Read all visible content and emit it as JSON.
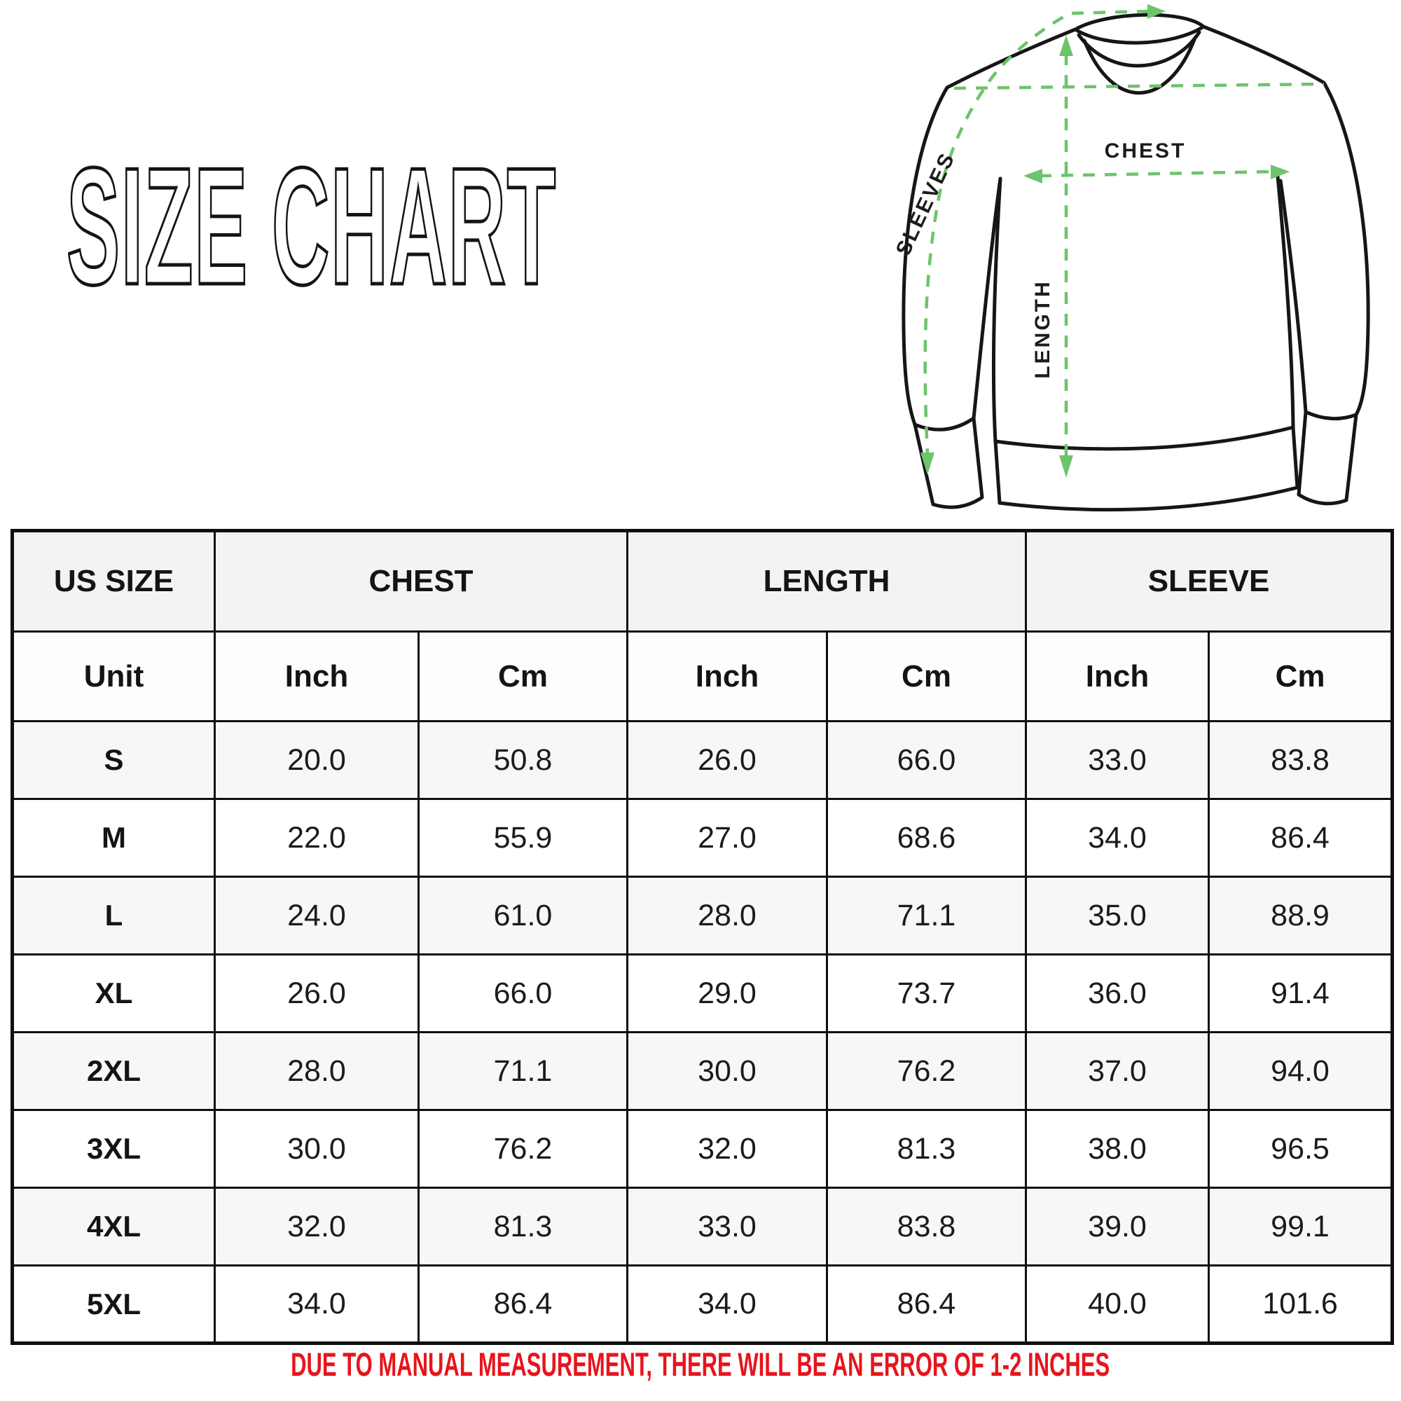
{
  "title": "SIZE CHART",
  "diagram": {
    "labels": {
      "sleeves": "SLEEVES",
      "chest": "CHEST",
      "length": "LENGTH"
    },
    "arrow_color": "#6cc46b",
    "outline_color": "#161616"
  },
  "table": {
    "header_groups": [
      "US SIZE",
      "CHEST",
      "LENGTH",
      "SLEEVE"
    ],
    "unit_row": [
      "Unit",
      "Inch",
      "Cm",
      "Inch",
      "Cm",
      "Inch",
      "Cm"
    ],
    "rows": [
      {
        "size": "S",
        "values": [
          "20.0",
          "50.8",
          "26.0",
          "66.0",
          "33.0",
          "83.8"
        ]
      },
      {
        "size": "M",
        "values": [
          "22.0",
          "55.9",
          "27.0",
          "68.6",
          "34.0",
          "86.4"
        ]
      },
      {
        "size": "L",
        "values": [
          "24.0",
          "61.0",
          "28.0",
          "71.1",
          "35.0",
          "88.9"
        ]
      },
      {
        "size": "XL",
        "values": [
          "26.0",
          "66.0",
          "29.0",
          "73.7",
          "36.0",
          "91.4"
        ]
      },
      {
        "size": "2XL",
        "values": [
          "28.0",
          "71.1",
          "30.0",
          "76.2",
          "37.0",
          "94.0"
        ]
      },
      {
        "size": "3XL",
        "values": [
          "30.0",
          "76.2",
          "32.0",
          "81.3",
          "38.0",
          "96.5"
        ]
      },
      {
        "size": "4XL",
        "values": [
          "32.0",
          "81.3",
          "33.0",
          "83.8",
          "39.0",
          "99.1"
        ]
      },
      {
        "size": "5XL",
        "values": [
          "34.0",
          "86.4",
          "34.0",
          "86.4",
          "40.0",
          "101.6"
        ]
      }
    ]
  },
  "footer": {
    "note": "DUE TO MANUAL  MEASUREMENT, THERE WILL BE AN ERROR OF 1-2 INCHES",
    "color": "#e8141c"
  },
  "chart_data": {
    "type": "table",
    "title": "SIZE CHART",
    "columns": [
      "US SIZE",
      "CHEST Inch",
      "CHEST Cm",
      "LENGTH Inch",
      "LENGTH Cm",
      "SLEEVE Inch",
      "SLEEVE Cm"
    ],
    "rows": [
      [
        "S",
        20.0,
        50.8,
        26.0,
        66.0,
        33.0,
        83.8
      ],
      [
        "M",
        22.0,
        55.9,
        27.0,
        68.6,
        34.0,
        86.4
      ],
      [
        "L",
        24.0,
        61.0,
        28.0,
        71.1,
        35.0,
        88.9
      ],
      [
        "XL",
        26.0,
        66.0,
        29.0,
        73.7,
        36.0,
        91.4
      ],
      [
        "2XL",
        28.0,
        71.1,
        30.0,
        76.2,
        37.0,
        94.0
      ],
      [
        "3XL",
        30.0,
        76.2,
        32.0,
        81.3,
        38.0,
        96.5
      ],
      [
        "4XL",
        32.0,
        81.3,
        33.0,
        83.8,
        39.0,
        99.1
      ],
      [
        "5XL",
        34.0,
        86.4,
        34.0,
        86.4,
        40.0,
        101.6
      ]
    ]
  }
}
